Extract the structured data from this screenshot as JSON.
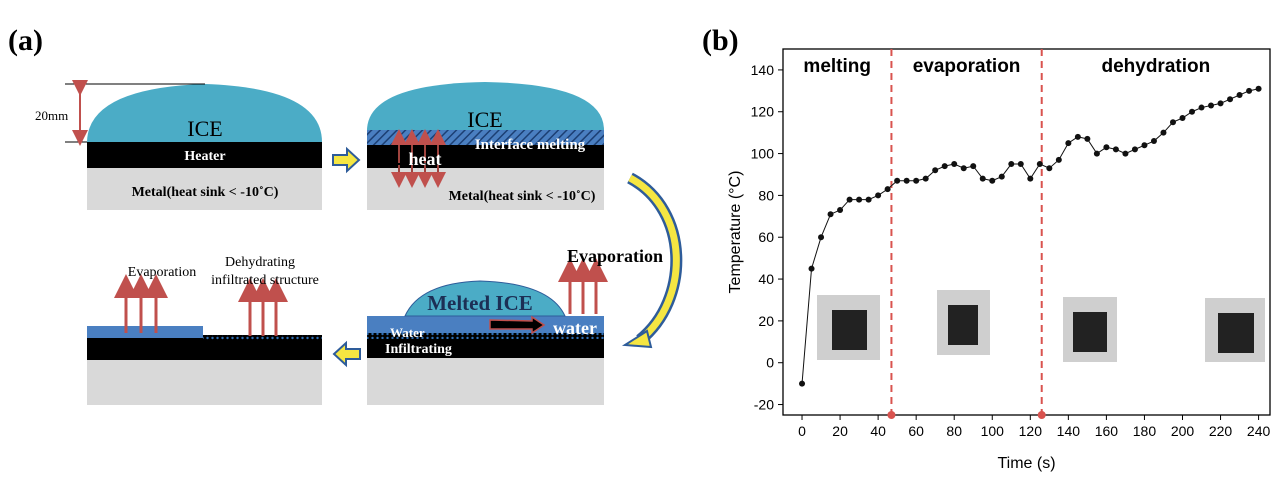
{
  "panel_labels": [
    "(a)",
    "(b)"
  ],
  "diagram": {
    "dimension": "20mm",
    "step1": {
      "ice": "ICE",
      "heater": "Heater",
      "metal": "Metal(heat sink < -10˚C)"
    },
    "step2": {
      "ice": "ICE",
      "interface": "Interface melting",
      "heat": "heat",
      "metal": "Metal(heat sink < -10˚C)"
    },
    "step3": {
      "evaporation": "Evaporation",
      "ice": "Melted ICE",
      "water_flow": "water",
      "water": "Water",
      "infiltrating": "Infiltrating"
    },
    "step4": {
      "evaporation": "Evaporation",
      "dehydrating": "Dehydrating",
      "structure": "infiltrated structure"
    }
  },
  "chart_data": {
    "type": "line",
    "xlabel": "Time (s)",
    "ylabel": "Temperature (°C)",
    "x": [
      0,
      5,
      10,
      15,
      20,
      25,
      30,
      35,
      40,
      45,
      50,
      55,
      60,
      65,
      70,
      75,
      80,
      85,
      90,
      95,
      100,
      105,
      110,
      115,
      120,
      125,
      130,
      135,
      140,
      145,
      150,
      155,
      160,
      165,
      170,
      175,
      180,
      185,
      190,
      195,
      200,
      205,
      210,
      215,
      220,
      225,
      230,
      235,
      240
    ],
    "series": [
      {
        "color": "#111111",
        "values": [
          -10,
          45,
          60,
          71,
          73,
          78,
          78,
          78,
          80,
          83,
          87,
          87,
          87,
          88,
          92,
          94,
          95,
          93,
          94,
          88,
          87,
          89,
          95,
          95,
          88,
          95,
          93,
          97,
          105,
          108,
          107,
          100,
          103,
          102,
          100,
          102,
          104,
          106,
          110,
          115,
          117,
          120,
          122,
          123,
          124,
          126,
          128,
          130,
          131
        ]
      }
    ],
    "xlim": [
      -10,
      246
    ],
    "ylim": [
      -25,
      150
    ],
    "xticks": [
      0,
      20,
      40,
      60,
      80,
      100,
      120,
      140,
      160,
      180,
      200,
      220,
      240
    ],
    "yticks": [
      -20,
      0,
      20,
      40,
      60,
      80,
      100,
      120,
      140
    ],
    "phase_boundaries": [
      47,
      126
    ],
    "phases": [
      "melting",
      "evaporation",
      "dehydration"
    ],
    "boundary_color": "#d9534f"
  }
}
